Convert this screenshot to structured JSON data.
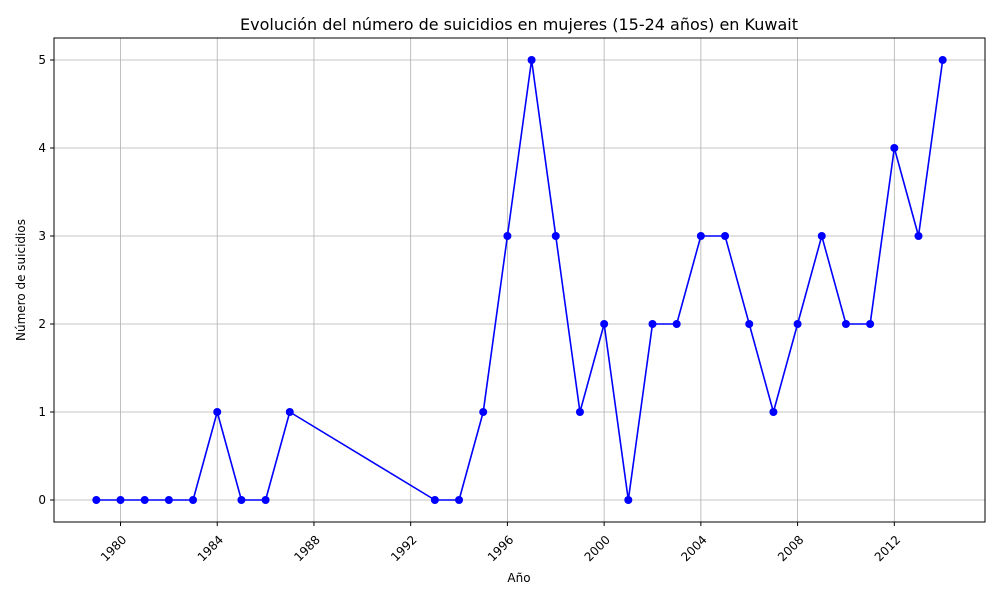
{
  "chart_data": {
    "type": "line",
    "title": "Evolución del número de suicidios en mujeres (15-24 años) en Kuwait",
    "xlabel": "Año",
    "ylabel": "Número de suicidios",
    "grid": true,
    "legend": "none",
    "xlim": [
      1976.2,
      1978.2
    ],
    "ylim": [
      -0.25,
      5.25
    ],
    "x_ticks": [
      1980,
      1984,
      1988,
      1992,
      1996,
      2000,
      2004,
      2008,
      2012
    ],
    "y_ticks": [
      0,
      1,
      2,
      3,
      4,
      5
    ],
    "series_color": "#0000ff",
    "series": [
      {
        "x": [
          1979,
          1980,
          1981,
          1982,
          1983,
          1984,
          1985,
          1986,
          1987,
          1993,
          1994,
          1995,
          1996,
          1997,
          1998,
          1999,
          2000,
          2001,
          2002,
          2003,
          2004,
          2005,
          2006,
          2007,
          2008,
          2009,
          2010,
          2011,
          2012,
          2013,
          2014
        ],
        "values": [
          0,
          0,
          0,
          0,
          0,
          1,
          0,
          0,
          1,
          0,
          0,
          1,
          3,
          5,
          3,
          1,
          2,
          0,
          2,
          2,
          3,
          3,
          2,
          1,
          2,
          3,
          2,
          2,
          4,
          3,
          5
        ]
      }
    ]
  }
}
